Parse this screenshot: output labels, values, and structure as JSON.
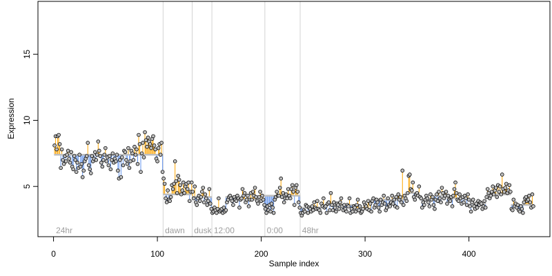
{
  "chart_data": {
    "type": "scatter",
    "title": "",
    "xlabel": "Sample index",
    "ylabel": "Expression",
    "xlim": [
      -15,
      478
    ],
    "ylim": [
      1.2,
      19.0
    ],
    "xticks": [
      0,
      100,
      200,
      300,
      400
    ],
    "yticks": [
      5,
      10,
      15
    ],
    "grid": false,
    "legend": "none",
    "colors": {
      "above_baseline": "#FFA500",
      "below_baseline": "#6495ED",
      "baseline": "#BEBEBE",
      "point_fill": "#BEBEBE",
      "point_stroke": "#000000",
      "divider": "#D3D3D3",
      "region_label": "#9E9E9E"
    },
    "regions": [
      {
        "label": "24hr",
        "start": 1
      },
      {
        "label": "dawn",
        "start": 106
      },
      {
        "label": "dusk",
        "start": 134
      },
      {
        "label": "12:00",
        "start": 153
      },
      {
        "label": "0:00",
        "start": 204
      },
      {
        "label": "48hr",
        "start": 238
      }
    ],
    "segments": [
      {
        "x_start": 1,
        "x_end": 105,
        "baseline": 7.4
      },
      {
        "x_start": 106,
        "x_end": 133,
        "baseline": 4.4
      },
      {
        "x_start": 134,
        "x_end": 152,
        "baseline": 4.2
      },
      {
        "x_start": 153,
        "x_end": 165,
        "baseline": 3.3
      },
      {
        "x_start": 166,
        "x_end": 178,
        "baseline": 4.2
      },
      {
        "x_start": 179,
        "x_end": 203,
        "baseline": 4.0
      },
      {
        "x_start": 204,
        "x_end": 237,
        "baseline": 4.3
      },
      {
        "x_start": 238,
        "x_end": 258,
        "baseline": 3.4
      },
      {
        "x_start": 259,
        "x_end": 290,
        "baseline": 3.6
      },
      {
        "x_start": 291,
        "x_end": 305,
        "baseline": 3.3
      },
      {
        "x_start": 306,
        "x_end": 340,
        "baseline": 4.0
      },
      {
        "x_start": 341,
        "x_end": 352,
        "baseline": 4.5
      },
      {
        "x_start": 353,
        "x_end": 366,
        "baseline": 4.0
      },
      {
        "x_start": 367,
        "x_end": 378,
        "baseline": 4.3
      },
      {
        "x_start": 379,
        "x_end": 400,
        "baseline": 4.1
      },
      {
        "x_start": 401,
        "x_end": 416,
        "baseline": 3.7
      },
      {
        "x_start": 417,
        "x_end": 440,
        "baseline": 4.4
      },
      {
        "x_start": 441,
        "x_end": 462,
        "baseline": 3.6
      }
    ],
    "x": [
      1,
      2,
      3,
      4,
      5,
      6,
      7,
      8,
      9,
      10,
      11,
      12,
      13,
      14,
      15,
      16,
      17,
      18,
      19,
      20,
      21,
      22,
      23,
      24,
      25,
      26,
      27,
      28,
      29,
      30,
      31,
      32,
      33,
      34,
      35,
      36,
      37,
      38,
      39,
      40,
      41,
      42,
      43,
      44,
      45,
      46,
      47,
      48,
      49,
      50,
      51,
      52,
      53,
      54,
      55,
      56,
      57,
      58,
      59,
      60,
      61,
      62,
      63,
      64,
      65,
      66,
      67,
      68,
      69,
      70,
      71,
      72,
      73,
      74,
      75,
      76,
      77,
      78,
      79,
      80,
      81,
      82,
      83,
      84,
      85,
      86,
      87,
      88,
      89,
      90,
      91,
      92,
      93,
      94,
      95,
      96,
      97,
      98,
      99,
      100,
      101,
      102,
      103,
      104,
      105,
      106,
      107,
      108,
      109,
      110,
      111,
      112,
      113,
      114,
      115,
      116,
      117,
      118,
      119,
      120,
      121,
      122,
      123,
      124,
      125,
      126,
      127,
      128,
      129,
      130,
      131,
      132,
      133,
      134,
      135,
      136,
      137,
      138,
      139,
      140,
      141,
      142,
      143,
      144,
      145,
      146,
      147,
      148,
      149,
      150,
      151,
      152,
      153,
      154,
      155,
      156,
      157,
      158,
      159,
      160,
      161,
      162,
      163,
      164,
      165,
      166,
      167,
      168,
      169,
      170,
      171,
      172,
      173,
      174,
      175,
      176,
      177,
      178,
      179,
      180,
      181,
      182,
      183,
      184,
      185,
      186,
      187,
      188,
      189,
      190,
      191,
      192,
      193,
      194,
      195,
      196,
      197,
      198,
      199,
      200,
      201,
      202,
      203,
      204,
      205,
      206,
      207,
      208,
      209,
      210,
      211,
      212,
      213,
      214,
      215,
      216,
      217,
      218,
      219,
      220,
      221,
      222,
      223,
      224,
      225,
      226,
      227,
      228,
      229,
      230,
      231,
      232,
      233,
      234,
      235,
      236,
      237,
      238,
      239,
      240,
      241,
      242,
      243,
      244,
      245,
      246,
      247,
      248,
      249,
      250,
      251,
      252,
      253,
      254,
      255,
      256,
      257,
      258,
      259,
      260,
      261,
      262,
      263,
      264,
      265,
      266,
      267,
      268,
      269,
      270,
      271,
      272,
      273,
      274,
      275,
      276,
      277,
      278,
      279,
      280,
      281,
      282,
      283,
      284,
      285,
      286,
      287,
      288,
      289,
      290,
      291,
      292,
      293,
      294,
      295,
      296,
      297,
      298,
      299,
      300,
      301,
      302,
      303,
      304,
      305,
      306,
      307,
      308,
      309,
      310,
      311,
      312,
      313,
      314,
      315,
      316,
      317,
      318,
      319,
      320,
      321,
      322,
      323,
      324,
      325,
      326,
      327,
      328,
      329,
      330,
      331,
      332,
      333,
      334,
      335,
      336,
      337,
      338,
      339,
      340,
      341,
      342,
      343,
      344,
      345,
      346,
      347,
      348,
      349,
      350,
      351,
      352,
      353,
      354,
      355,
      356,
      357,
      358,
      359,
      360,
      361,
      362,
      363,
      364,
      365,
      366,
      367,
      368,
      369,
      370,
      371,
      372,
      373,
      374,
      375,
      376,
      377,
      378,
      379,
      380,
      381,
      382,
      383,
      384,
      385,
      386,
      387,
      388,
      389,
      390,
      391,
      392,
      393,
      394,
      395,
      396,
      397,
      398,
      399,
      400,
      401,
      402,
      403,
      404,
      405,
      406,
      407,
      408,
      409,
      410,
      411,
      412,
      413,
      414,
      415,
      416,
      417,
      418,
      419,
      420,
      421,
      422,
      423,
      424,
      425,
      426,
      427,
      428,
      429,
      430,
      431,
      432,
      433,
      434,
      435,
      436,
      437,
      438,
      439,
      440,
      441,
      442,
      443,
      444,
      445,
      446,
      447,
      448,
      449,
      450,
      451,
      452,
      453,
      454,
      455,
      456,
      457,
      458,
      459,
      460,
      461,
      462
    ],
    "values": [
      8.1,
      8.8,
      7.8,
      8.8,
      8.9,
      8.2,
      6.4,
      7.8,
      7.0,
      6.7,
      7.3,
      6.9,
      7.4,
      7.7,
      7.1,
      6.8,
      7.6,
      6.5,
      6.3,
      7.3,
      7.0,
      6.1,
      6.8,
      6.4,
      7.4,
      6.5,
      6.7,
      5.7,
      6.2,
      6.9,
      7.1,
      7.3,
      8.3,
      6.6,
      6.3,
      6.0,
      7.3,
      6.9,
      7.1,
      7.6,
      7.0,
      7.4,
      8.4,
      7.7,
      7.3,
      6.8,
      6.5,
      7.0,
      7.4,
      7.9,
      6.9,
      7.2,
      6.6,
      7.3,
      6.3,
      7.0,
      7.5,
      6.8,
      7.1,
      6.9,
      7.4,
      6.2,
      5.6,
      7.0,
      5.7,
      7.2,
      6.6,
      7.7,
      7.6,
      7.0,
      6.7,
      7.9,
      6.4,
      6.9,
      7.7,
      7.5,
      7.0,
      8.0,
      7.4,
      7.8,
      6.7,
      8.9,
      8.2,
      6.1,
      7.5,
      8.3,
      7.2,
      9.1,
      8.5,
      8.0,
      8.7,
      8.4,
      8.2,
      7.9,
      8.6,
      8.8,
      8.1,
      7.8,
      7.1,
      6.9,
      7.9,
      8.2,
      7.4,
      8.3,
      6.1,
      5.6,
      5.2,
      4.1,
      3.8,
      4.7,
      4.0,
      3.9,
      4.2,
      5.1,
      4.8,
      5.2,
      6.9,
      5.4,
      4.5,
      5.8,
      5.5,
      5.1,
      4.4,
      4.7,
      5.3,
      4.5,
      5.0,
      5.2,
      4.8,
      5.3,
      3.9,
      4.6,
      5.3,
      4.6,
      4.1,
      5.0,
      3.8,
      3.6,
      4.1,
      4.3,
      3.9,
      4.2,
      4.6,
      4.9,
      3.8,
      4.4,
      4.1,
      3.6,
      3.9,
      4.8,
      3.7,
      3.3,
      3.0,
      3.1,
      3.4,
      3.2,
      3.0,
      3.3,
      4.1,
      3.1,
      3.2,
      3.3,
      3.0,
      3.4,
      3.1,
      3.2,
      3.8,
      4.0,
      4.2,
      4.3,
      4.1,
      3.9,
      3.6,
      4.2,
      4.0,
      3.9,
      4.3,
      4.1,
      3.4,
      4.0,
      4.1,
      4.8,
      4.3,
      4.5,
      3.8,
      4.0,
      4.3,
      3.5,
      4.0,
      4.5,
      4.0,
      4.6,
      4.3,
      4.9,
      4.2,
      3.9,
      3.7,
      4.2,
      4.6,
      3.9,
      4.3,
      4.0,
      3.6,
      3.3,
      3.0,
      3.5,
      3.2,
      3.6,
      3.1,
      3.7,
      3.4,
      3.0,
      4.0,
      4.2,
      4.6,
      4.3,
      4.3,
      4.9,
      5.6,
      4.2,
      4.5,
      3.8,
      4.1,
      4.4,
      4.1,
      4.8,
      4.3,
      4.1,
      4.8,
      5.1,
      4.6,
      3.6,
      4.9,
      5.1,
      4.6,
      3.8,
      3.4,
      3.0,
      2.8,
      3.0,
      3.2,
      3.1,
      3.6,
      3.5,
      3.0,
      3.4,
      3.3,
      3.1,
      3.5,
      3.2,
      3.8,
      3.4,
      3.3,
      3.9,
      3.3,
      3.2,
      3.0,
      3.7,
      3.5,
      4.1,
      3.4,
      3.5,
      3.0,
      3.7,
      3.8,
      3.2,
      4.5,
      3.6,
      3.2,
      3.8,
      3.4,
      3.1,
      3.7,
      3.6,
      3.3,
      3.8,
      4.1,
      3.5,
      3.2,
      3.6,
      3.3,
      3.1,
      3.6,
      3.5,
      4.1,
      3.0,
      3.3,
      3.1,
      3.5,
      3.4,
      3.1,
      3.6,
      4.0,
      3.2,
      3.5,
      3.0,
      3.1,
      3.3,
      3.8,
      3.6,
      3.5,
      3.3,
      3.9,
      3.2,
      3.7,
      3.1,
      3.9,
      4.1,
      3.4,
      3.6,
      4.0,
      3.8,
      3.4,
      3.1,
      4.0,
      3.6,
      3.8,
      4.3,
      3.7,
      3.2,
      3.4,
      4.1,
      3.6,
      3.5,
      3.8,
      4.3,
      3.7,
      4.0,
      3.5,
      4.2,
      3.4,
      4.4,
      4.0,
      4.2,
      3.8,
      6.2,
      3.6,
      4.3,
      4.1,
      3.9,
      4.5,
      5.8,
      5.9,
      4.8,
      4.7,
      5.3,
      4.2,
      4.0,
      4.4,
      4.5,
      4.3,
      5.0,
      4.2,
      4.1,
      3.4,
      3.8,
      3.6,
      4.0,
      4.3,
      4.1,
      3.8,
      3.5,
      4.4,
      4.0,
      4.2,
      3.6,
      3.3,
      4.0,
      4.4,
      3.9,
      4.6,
      4.1,
      3.8,
      4.9,
      4.5,
      4.1,
      4.3,
      4.6,
      3.7,
      4.3,
      4.0,
      3.9,
      4.2,
      3.5,
      4.3,
      4.8,
      5.3,
      4.5,
      4.0,
      3.9,
      4.4,
      4.1,
      3.7,
      4.2,
      3.8,
      4.3,
      4.1,
      3.6,
      4.4,
      4.0,
      3.5,
      3.1,
      3.8,
      4.0,
      3.5,
      3.3,
      3.7,
      3.4,
      3.9,
      3.6,
      3.8,
      3.7,
      3.3,
      3.5,
      3.9,
      3.4,
      4.2,
      4.8,
      4.5,
      4.1,
      4.3,
      4.6,
      5.0,
      4.4,
      4.7,
      4.9,
      4.2,
      5.1,
      4.6,
      5.0,
      4.4,
      5.9,
      4.8,
      4.6,
      4.9,
      5.2,
      4.5,
      4.7,
      5.1,
      4.6,
      3.3,
      3.2,
      4.0,
      3.5,
      3.7,
      3.4,
      3.6,
      3.2,
      3.1,
      3.5,
      3.3,
      3.0,
      3.8,
      4.1,
      4.2,
      3.9,
      4.0,
      4.3,
      3.8,
      3.4,
      4.4,
      3.5
    ]
  }
}
